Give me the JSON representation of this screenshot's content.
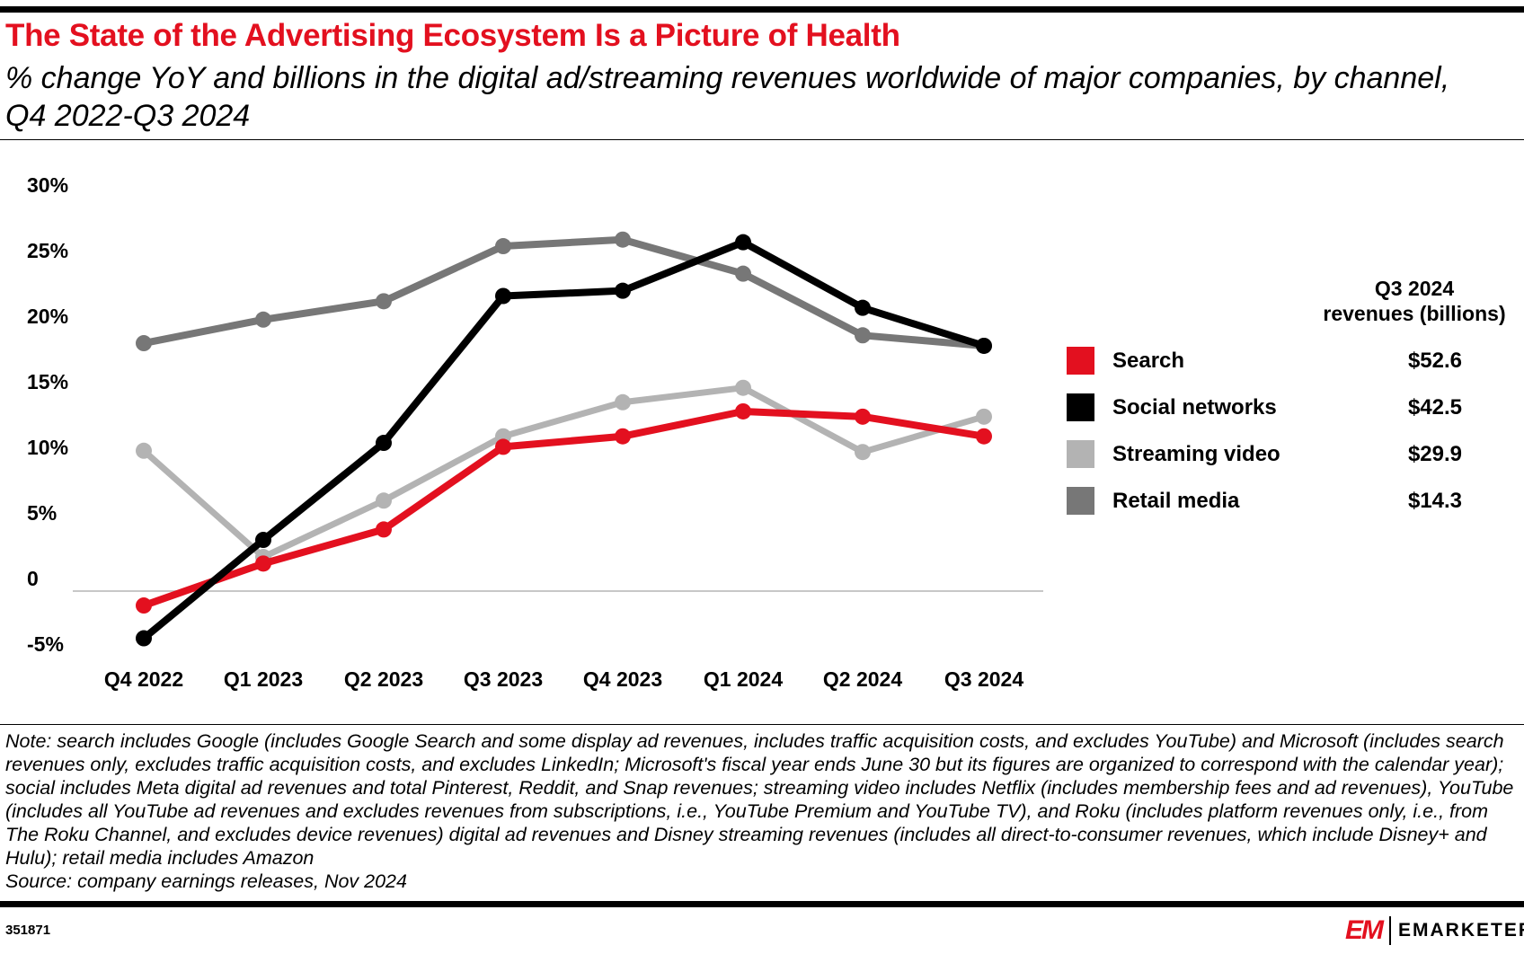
{
  "title": "The State of the Advertising Ecosystem Is a Picture of Health",
  "subtitle": "% change YoY and billions in the digital ad/streaming revenues worldwide of major companies, by channel, Q4 2022-Q3 2024",
  "chart_data": {
    "type": "line",
    "categories": [
      "Q4 2022",
      "Q1 2023",
      "Q2 2023",
      "Q3 2023",
      "Q4 2023",
      "Q1 2024",
      "Q2 2024",
      "Q3 2024"
    ],
    "y_ticks": [
      "30%",
      "25%",
      "20%",
      "15%",
      "10%",
      "5%",
      "0",
      "-5%"
    ],
    "y_tick_values": [
      30,
      25,
      20,
      15,
      10,
      5,
      0,
      -5
    ],
    "ylim": [
      -5,
      30
    ],
    "grid": "zero line only",
    "legend_placement": "right",
    "series": [
      {
        "name": "Retail media",
        "color": "#777777",
        "values": [
          18.9,
          20.7,
          22.1,
          26.3,
          26.8,
          24.2,
          19.5,
          18.7
        ]
      },
      {
        "name": "Streaming video",
        "color": "#b3b3b3",
        "values": [
          10.7,
          2.6,
          6.9,
          11.8,
          14.4,
          15.5,
          10.6,
          13.3
        ]
      },
      {
        "name": "Search",
        "color": "#e3101f",
        "values": [
          -1.1,
          2.1,
          4.7,
          11.0,
          11.8,
          13.7,
          13.3,
          11.8
        ]
      },
      {
        "name": "Social networks",
        "color": "#000000",
        "values": [
          -3.6,
          3.9,
          11.3,
          22.5,
          22.9,
          26.6,
          21.6,
          18.7
        ]
      }
    ]
  },
  "legend": {
    "header_line1": "Q3 2024",
    "header_line2": "revenues (billions)",
    "items": [
      {
        "label": "Search",
        "value": "$52.6",
        "color": "#e3101f"
      },
      {
        "label": "Social networks",
        "value": "$42.5",
        "color": "#000000"
      },
      {
        "label": "Streaming video",
        "value": "$29.9",
        "color": "#b3b3b3"
      },
      {
        "label": "Retail media",
        "value": "$14.3",
        "color": "#777777"
      }
    ]
  },
  "note": "Note: search includes Google (includes Google Search and some display ad revenues, includes traffic acquisition costs, and excludes YouTube) and Microsoft (includes search revenues only, excludes traffic acquisition costs, and excludes LinkedIn; Microsoft's fiscal year ends June 30 but its figures are organized to correspond with the calendar year); social includes Meta digital ad revenues and total Pinterest, Reddit, and Snap revenues; streaming video includes Netflix (includes membership fees and ad revenues), YouTube (includes all YouTube ad revenues and excludes revenues from subscriptions, i.e., YouTube Premium and YouTube TV), and Roku (includes platform revenues only, i.e., from The Roku Channel, and excludes device revenues) digital ad revenues and Disney streaming revenues (includes all direct-to-consumer revenues, which include Disney+ and Hulu); retail media includes Amazon",
  "source": "Source: company earnings releases, Nov 2024",
  "chart_id": "351871",
  "logo": {
    "mark": "EM",
    "brand": "EMARKETER"
  }
}
